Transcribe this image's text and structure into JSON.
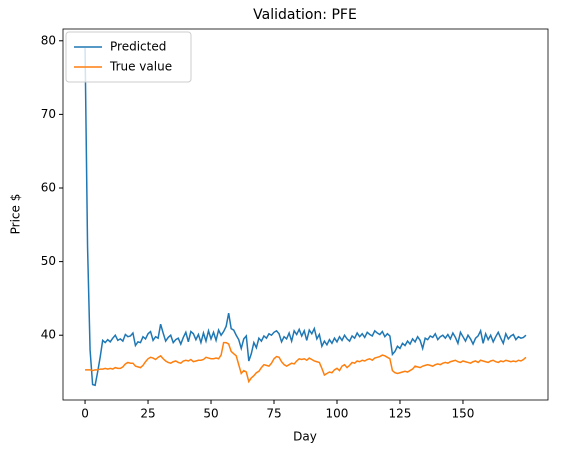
{
  "chart_data": {
    "type": "line",
    "title": "Validation: PFE",
    "xlabel": "Day",
    "ylabel": "Price $",
    "x": [
      0,
      1,
      2,
      3,
      4,
      5,
      6,
      7,
      8,
      9,
      10,
      11,
      12,
      13,
      14,
      15,
      16,
      17,
      18,
      19,
      20,
      21,
      22,
      23,
      24,
      25,
      26,
      27,
      28,
      29,
      30,
      31,
      32,
      33,
      34,
      35,
      36,
      37,
      38,
      39,
      40,
      41,
      42,
      43,
      44,
      45,
      46,
      47,
      48,
      49,
      50,
      51,
      52,
      53,
      54,
      55,
      56,
      57,
      58,
      59,
      60,
      61,
      62,
      63,
      64,
      65,
      66,
      67,
      68,
      69,
      70,
      71,
      72,
      73,
      74,
      75,
      76,
      77,
      78,
      79,
      80,
      81,
      82,
      83,
      84,
      85,
      86,
      87,
      88,
      89,
      90,
      91,
      92,
      93,
      94,
      95,
      96,
      97,
      98,
      99,
      100,
      101,
      102,
      103,
      104,
      105,
      106,
      107,
      108,
      109,
      110,
      111,
      112,
      113,
      114,
      115,
      116,
      117,
      118,
      119,
      120,
      121,
      122,
      123,
      124,
      125,
      126,
      127,
      128,
      129,
      130,
      131,
      132,
      133,
      134,
      135,
      136,
      137,
      138,
      139,
      140,
      141,
      142,
      143,
      144,
      145,
      146,
      147,
      148,
      149,
      150,
      151,
      152,
      153,
      154,
      155,
      156,
      157,
      158,
      159,
      160,
      161,
      162,
      163,
      164,
      165,
      166,
      167,
      168,
      169,
      170,
      171,
      172,
      173,
      174,
      175
    ],
    "series": [
      {
        "name": "Predicted",
        "color": "#1f77b4",
        "values": [
          79,
          52,
          38,
          33.3,
          33.2,
          35,
          37,
          39.3,
          39,
          39.4,
          39.1,
          39.6,
          40,
          39.3,
          39.5,
          39.2,
          40.1,
          39.8,
          39.9,
          40.3,
          38.6,
          39.1,
          39,
          39.8,
          39.5,
          40.2,
          40.5,
          39.3,
          39.8,
          39.6,
          41.5,
          40.3,
          39.2,
          39.7,
          40,
          39,
          39.4,
          39.6,
          38.8,
          39.7,
          40.4,
          39.1,
          40.5,
          40.2,
          39.4,
          40.1,
          39,
          40.3,
          39.2,
          40.6,
          39.5,
          40.4,
          39.3,
          40.7,
          40,
          40.5,
          41.2,
          43,
          40.9,
          40.7,
          40,
          39.4,
          38.2,
          39.5,
          39.9,
          36.5,
          37.5,
          39,
          38.3,
          39.6,
          39.2,
          39.9,
          39.6,
          40.2,
          40,
          40.4,
          40.6,
          40.2,
          39.1,
          39.8,
          39.5,
          40.3,
          39.2,
          40.6,
          40.1,
          40.8,
          39.9,
          40.6,
          39.3,
          40.7,
          40.2,
          40.9,
          39.5,
          40.1,
          38.5,
          39.2,
          38.7,
          39.4,
          38.9,
          39.6,
          39.1,
          39.8,
          39.3,
          40,
          39.5,
          39.2,
          39.9,
          39.6,
          40.3,
          39.8,
          40.2,
          39.7,
          40.4,
          40.1,
          39.9,
          40.6,
          40.3,
          40.1,
          40.5,
          39.8,
          40.2,
          39.9,
          37.4,
          37.8,
          38.5,
          38.2,
          38.9,
          38.6,
          39.2,
          38.8,
          39.5,
          39.1,
          39.8,
          39.3,
          38.2,
          39.6,
          39.4,
          39.9,
          39.7,
          40.2,
          39.4,
          39.8,
          40,
          39.6,
          40.1,
          39.5,
          40.3,
          39.7,
          38.9,
          40.4,
          39.8,
          39.2,
          40,
          39.5,
          38.8,
          39.6,
          39.9,
          40.6,
          38.9,
          40.2,
          39.4,
          40,
          39.1,
          39.8,
          40.4,
          39.6,
          38.9,
          40.2,
          39.5,
          39.9,
          40.1,
          39.4,
          39.8,
          39.6,
          39.7,
          40
        ]
      },
      {
        "name": "True value",
        "color": "#ff7f0e",
        "values": [
          35.3,
          35.3,
          35.3,
          35.2,
          35.3,
          35.3,
          35.4,
          35.4,
          35.5,
          35.4,
          35.5,
          35.4,
          35.6,
          35.5,
          35.5,
          35.7,
          36.1,
          36.3,
          36.2,
          36.2,
          35.8,
          35.7,
          35.6,
          35.9,
          36.4,
          36.8,
          37,
          36.9,
          36.7,
          37,
          37.2,
          36.8,
          36.5,
          36.3,
          36.2,
          36.4,
          36.5,
          36.3,
          36.2,
          36.5,
          36.6,
          36.5,
          36.7,
          36.4,
          36.5,
          36.6,
          36.6,
          36.7,
          37,
          36.9,
          36.8,
          36.8,
          36.9,
          36.8,
          37.3,
          39,
          39,
          38.8,
          37.8,
          37.5,
          37.2,
          36,
          34.8,
          35.2,
          35,
          33.7,
          34.2,
          34.5,
          34.9,
          35.1,
          35.6,
          36,
          35.9,
          35.8,
          36.2,
          36.8,
          37.1,
          37,
          36.4,
          36,
          35.8,
          36,
          36.2,
          36.1,
          36.5,
          36.8,
          36.7,
          36.8,
          36.6,
          36.9,
          36.7,
          36.5,
          36.4,
          36.3,
          35.5,
          34.6,
          34.8,
          35,
          34.9,
          35.3,
          35.5,
          35.2,
          35.8,
          36,
          35.6,
          35.9,
          36.3,
          36.2,
          36.5,
          36.4,
          36.6,
          36.5,
          36.7,
          36.8,
          36.6,
          36.9,
          37,
          37.1,
          37.3,
          37.2,
          37,
          36.8,
          35.2,
          34.9,
          34.8,
          34.9,
          35,
          35.1,
          35,
          35.2,
          35.4,
          35.8,
          35.7,
          35.6,
          35.8,
          35.9,
          36,
          35.9,
          35.8,
          36,
          36.1,
          36,
          36.2,
          36.3,
          36.2,
          36.4,
          36.5,
          36.6,
          36.4,
          36.3,
          36.5,
          36.4,
          36.3,
          36.2,
          36.4,
          36.5,
          36.3,
          36.6,
          36.5,
          36.4,
          36.3,
          36.5,
          36.6,
          36.4,
          36.3,
          36.5,
          36.4,
          36.6,
          36.5,
          36.4,
          36.5,
          36.4,
          36.6,
          36.5,
          36.7,
          37
        ]
      }
    ],
    "xlim": [
      -8.75,
      183.75
    ],
    "xticks": [
      0,
      25,
      50,
      75,
      100,
      125,
      150
    ],
    "ylim": [
      31.2,
      81.6
    ],
    "yticks": [
      40,
      50,
      60,
      70,
      80
    ],
    "legend": "upper left"
  }
}
